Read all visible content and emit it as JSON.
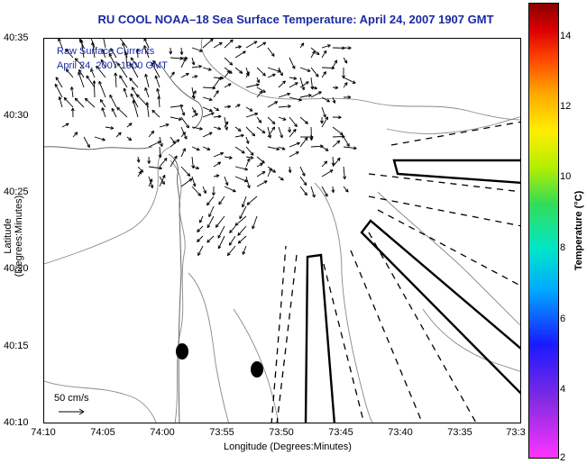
{
  "title": "RU COOL  NOAA–18  Sea Surface Temperature:  April 24, 2007 1907 GMT",
  "legend": {
    "line1": "Raw Surface Currents",
    "line2": "April 24, 2007 1900 GMT"
  },
  "axes": {
    "xlabel": "Longitude (Degrees:Minutes)",
    "ylabel": "Latitude (Degrees:Minutes)",
    "xticks": [
      "74:10",
      "74:05",
      "74:00",
      "73:55",
      "73:50",
      "73:45",
      "73:40",
      "73:35",
      "73:3"
    ],
    "yticks": [
      "40:35",
      "40:30",
      "40:25",
      "40:20",
      "40:15",
      "40:10"
    ]
  },
  "scale": {
    "label": "50 cm/s"
  },
  "colorbar": {
    "label": "Temperature (°C)",
    "ticks": [
      "14",
      "12",
      "10",
      "8",
      "6",
      "4",
      "2"
    ]
  },
  "colors": {
    "title": "#1a2aa0",
    "land_contour": "#888888",
    "vectors": "#000000"
  }
}
